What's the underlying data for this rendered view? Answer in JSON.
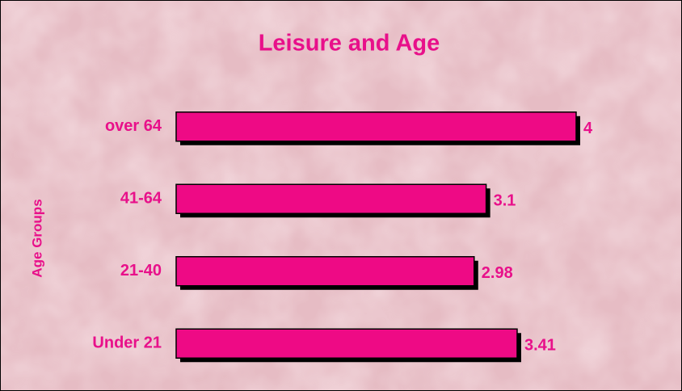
{
  "chart_data": {
    "type": "bar",
    "orientation": "horizontal",
    "title": "Leisure and Age",
    "y_label": "Age Groups",
    "categories": [
      "over 64",
      "41-64",
      "21-40",
      "Under 21"
    ],
    "values": [
      4,
      3.1,
      2.98,
      3.41
    ],
    "color": "#ee0a85"
  }
}
